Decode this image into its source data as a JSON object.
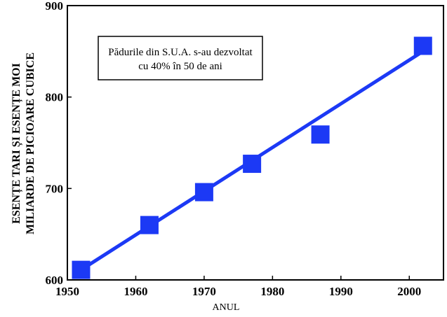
{
  "chart_data": {
    "type": "scatter",
    "title": "",
    "xlabel": "ANUL",
    "ylabel_lines": [
      "ESENȚE TARI ȘI ESENȚE MOI",
      "MILIARDE DE PICIOARE CUBICE"
    ],
    "xlim": [
      1950,
      2005
    ],
    "ylim": [
      600,
      900
    ],
    "xticks": [
      1950,
      1960,
      1970,
      1980,
      1990,
      2000
    ],
    "yticks": [
      600,
      700,
      800,
      900
    ],
    "series": [
      {
        "x": [
          1952,
          1962,
          1970,
          1977,
          1987,
          2002
        ],
        "y": [
          611,
          660,
          696,
          727,
          759,
          856
        ]
      }
    ],
    "trendline": {
      "x": [
        1952,
        2002
      ],
      "y": [
        611,
        850
      ]
    },
    "annotation_lines": [
      "Pădurile din S.U.A. s-au dezvoltat",
      "cu 40% în 50 de ani"
    ],
    "grid": false,
    "colors": {
      "marker": "#1c39f5",
      "line": "#1c39f5",
      "axis": "#000000"
    }
  }
}
